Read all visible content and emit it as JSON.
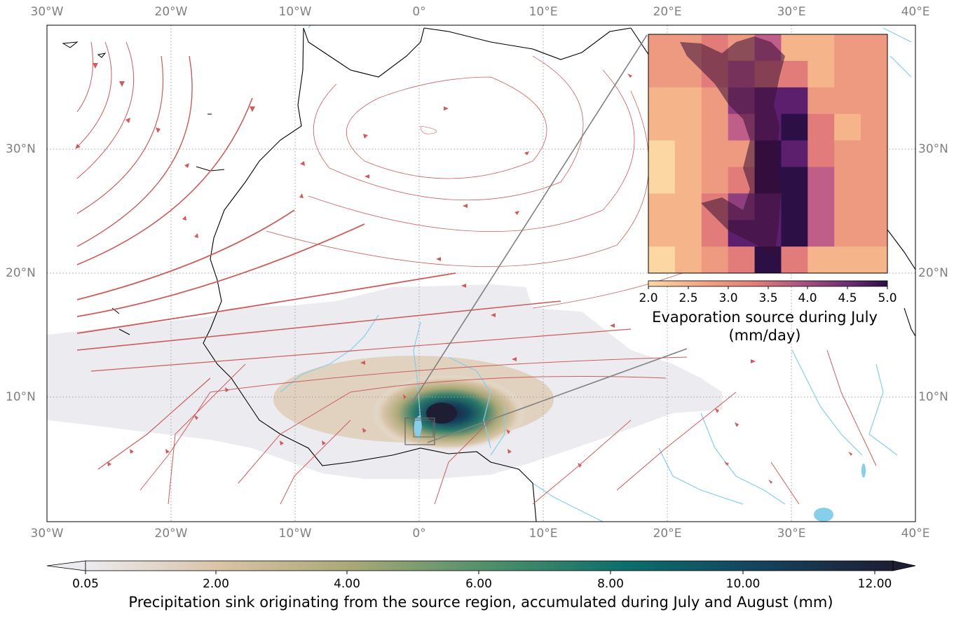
{
  "map": {
    "lon_labels": [
      "30°W",
      "20°W",
      "10°W",
      "0°",
      "10°E",
      "20°E",
      "30°E",
      "40°E"
    ],
    "lat_labels": [
      "30°N",
      "20°N",
      "10°N"
    ],
    "lon_range": [
      -30,
      40
    ],
    "lat_range": [
      0,
      40
    ],
    "gridline_color": "#a0a0a0",
    "streamline_color": "#cd5c5c",
    "river_color": "#87ceeb",
    "coastline_color": "#000000"
  },
  "colorbar": {
    "label": "Precipitation sink originating from the source region, accumulated during July and August (mm)",
    "ticks": [
      "0.05",
      "2.00",
      "4.00",
      "6.00",
      "8.00",
      "10.00",
      "12.00"
    ],
    "range": [
      0.05,
      12
    ],
    "extend": "both",
    "colormap": "gist_earth_r",
    "colors": [
      "#ecebf0",
      "#d8c3a5",
      "#a9a877",
      "#4f8f6a",
      "#0b6e6b",
      "#14445e",
      "#1d1e33"
    ]
  },
  "inset": {
    "label_line1": "Evaporation source during July",
    "label_line2": "(mm/day)",
    "ticks": [
      "2.0",
      "2.5",
      "3.0",
      "3.5",
      "4.0",
      "4.5",
      "5.0"
    ],
    "range": [
      2.0,
      5.0
    ],
    "colormap": "magma_r",
    "colors": [
      "#fcd7a4",
      "#f6b48a",
      "#ee9a80",
      "#e17c7a",
      "#bf5e88",
      "#8f3f80",
      "#5c1f6e",
      "#2b0f45"
    ],
    "grid_values": [
      [
        3.0,
        3.0,
        3.4,
        3.1,
        3.6,
        2.4,
        2.4,
        2.9,
        2.8
      ],
      [
        3.1,
        3.1,
        3.2,
        3.5,
        3.3,
        3.4,
        2.7,
        3.0,
        3.0
      ],
      [
        2.5,
        2.4,
        2.9,
        4.1,
        4.4,
        4.4,
        2.9,
        2.8,
        2.9
      ],
      [
        2.4,
        2.5,
        2.9,
        3.6,
        4.6,
        4.7,
        3.2,
        2.7,
        2.9
      ],
      [
        2.2,
        2.4,
        2.8,
        3.1,
        4.8,
        4.6,
        3.4,
        2.9,
        2.9
      ],
      [
        2.3,
        2.6,
        2.9,
        3.4,
        4.9,
        4.7,
        3.5,
        2.8,
        2.8
      ],
      [
        2.4,
        2.6,
        3.3,
        4.0,
        4.4,
        4.8,
        3.6,
        2.9,
        2.9
      ],
      [
        2.5,
        2.6,
        3.4,
        4.5,
        4.6,
        4.8,
        3.7,
        3.0,
        2.9
      ],
      [
        2.2,
        2.4,
        2.8,
        3.2,
        5.0,
        3.3,
        2.4,
        2.4,
        2.5
      ]
    ]
  }
}
